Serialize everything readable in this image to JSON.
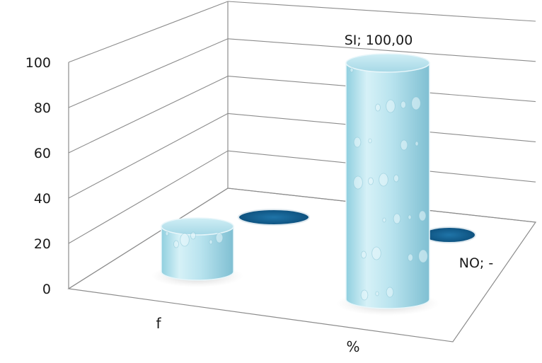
{
  "chart_data": {
    "type": "bar",
    "style": "3d-cylinder",
    "categories": [
      "f",
      "%"
    ],
    "series": [
      {
        "values": [
          20,
          100
        ],
        "color": "#bfe6ef"
      },
      {
        "values": [
          0,
          0
        ],
        "color": "#0e5a8a"
      }
    ],
    "data_labels": [
      {
        "category": "%",
        "text": "SI; 100,00"
      },
      {
        "category": "%",
        "text": "NO; -"
      }
    ],
    "ylim": [
      0,
      100
    ],
    "yticks": [
      "0",
      "20",
      "40",
      "60",
      "80",
      "100"
    ],
    "grid": true,
    "legend": "none"
  }
}
